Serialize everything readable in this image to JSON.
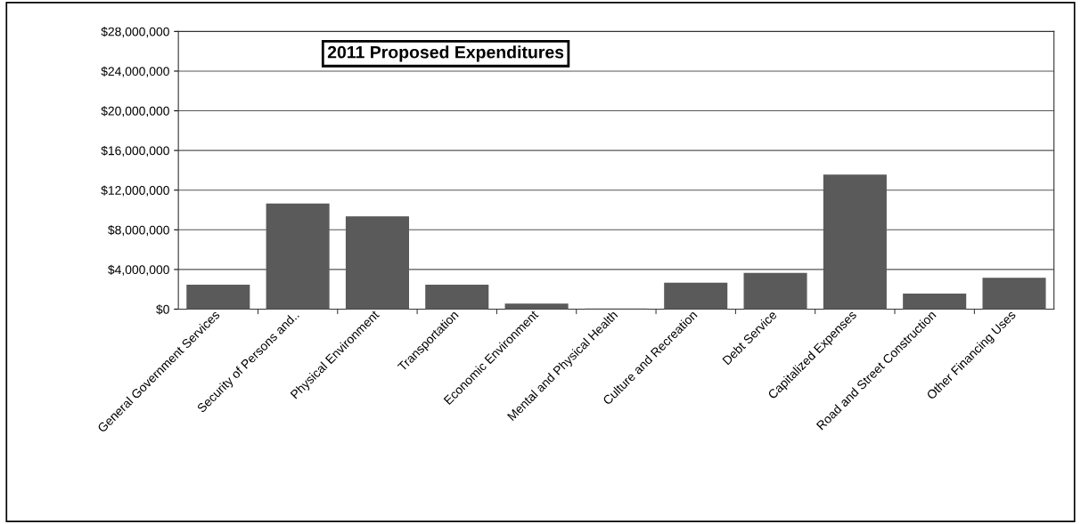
{
  "chart_data": {
    "type": "bar",
    "title": "2011 Proposed Expenditures",
    "categories": [
      "General Government Services",
      "Security of Persons and..",
      "Physical Environment",
      "Transportation",
      "Economic Environment",
      "Mental and Physical Health",
      "Culture and Recreation",
      "Debt Service",
      "Capitalized Expenses",
      "Road and Street Construction",
      "Other Financing Uses"
    ],
    "values": [
      2400000,
      10600000,
      9300000,
      2400000,
      500000,
      0,
      2600000,
      3600000,
      13500000,
      1500000,
      3100000
    ],
    "color": "#5a5a5a",
    "ylim": [
      0,
      28000000
    ],
    "yticks": [
      {
        "value": 0,
        "label": "$0"
      },
      {
        "value": 4000000,
        "label": "$4,000,000"
      },
      {
        "value": 8000000,
        "label": "$8,000,000"
      },
      {
        "value": 12000000,
        "label": "$12,000,000"
      },
      {
        "value": 16000000,
        "label": "$16,000,000"
      },
      {
        "value": 20000000,
        "label": "$20,000,000"
      },
      {
        "value": 24000000,
        "label": "$24,000,000"
      },
      {
        "value": 28000000,
        "label": "$28,000,000"
      }
    ],
    "grid": "y",
    "legend": false
  }
}
